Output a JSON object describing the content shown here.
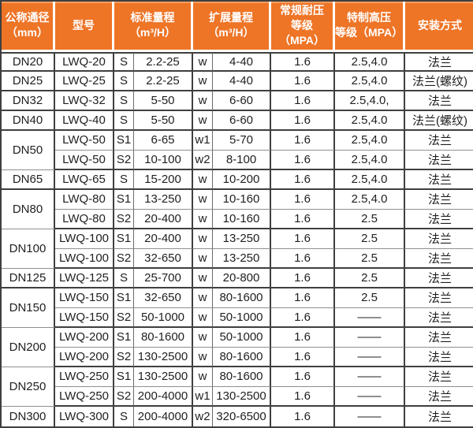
{
  "colors": {
    "header_bg": "#ee7426",
    "header_text": "#ffffff",
    "grid_dark": "#3f3f3f",
    "grid_light": "#8f8f8f",
    "body_text": "#1f1f1f",
    "header_separator": "#ffffff"
  },
  "table": {
    "columns": {
      "dn": "公称通径\n（mm）",
      "model": "型号",
      "std": "标准量程\n（m³/H）",
      "ext": "扩展量程\n（m³/H）",
      "p1": "常规耐压\n等级（MPA）",
      "p2": "特制高压\n等级（MPA）",
      "mount": "安装方式"
    },
    "rows": [
      {
        "dn": "DN20",
        "dn_span": 1,
        "model": "LWQ-20",
        "s": "S",
        "std": "2.2-25",
        "w": "w",
        "ext": "4-40",
        "p1": "1.6",
        "p2": "2.5,4.0",
        "mount": "法兰"
      },
      {
        "dn": "DN25",
        "dn_span": 1,
        "model": "LWQ-25",
        "s": "S",
        "std": "2.2-25",
        "w": "w",
        "ext": "4-40",
        "p1": "1.6",
        "p2": "2.5,4.0",
        "mount": "法兰(螺纹)"
      },
      {
        "dn": "DN32",
        "dn_span": 1,
        "model": "LWQ-32",
        "s": "S",
        "std": "5-50",
        "w": "w",
        "ext": "6-60",
        "p1": "1.6",
        "p2": "2.5,4.0,",
        "mount": "法兰"
      },
      {
        "dn": "DN40",
        "dn_span": 1,
        "model": "LWQ-40",
        "s": "S",
        "std": "5-50",
        "w": "w",
        "ext": "6-60",
        "p1": "1.6",
        "p2": "2.5,4.0",
        "mount": "法兰(螺纹)"
      },
      {
        "dn": "DN50",
        "dn_span": 2,
        "model": "LWQ-50",
        "s": "S1",
        "std": "6-65",
        "w": "w1",
        "ext": "5-70",
        "p1": "1.6",
        "p2": "2.5,4.0",
        "mount": "法兰"
      },
      {
        "model": "LWQ-50",
        "s": "S2",
        "std": "10-100",
        "w": "w2",
        "ext": "8-100",
        "p1": "1.6",
        "p2": "2.5,4.0",
        "mount": "法兰"
      },
      {
        "dn": "DN65",
        "dn_span": 1,
        "model": "LWQ-65",
        "s": "S",
        "std": "15-200",
        "w": "w",
        "ext": "10-200",
        "p1": "1.6",
        "p2": "2.5,4.0",
        "mount": "法兰"
      },
      {
        "dn": "DN80",
        "dn_span": 2,
        "model": "LWQ-80",
        "s": "S1",
        "std": "13-250",
        "w": "w",
        "ext": "10-160",
        "p1": "1.6",
        "p2": "2.5,4.0",
        "mount": "法兰"
      },
      {
        "model": "LWQ-80",
        "s": "S2",
        "std": "20-400",
        "w": "w",
        "ext": "10-160",
        "p1": "1.6",
        "p2": "2.5",
        "mount": "法兰"
      },
      {
        "dn": "DN100",
        "dn_span": 2,
        "model": "LWQ-100",
        "s": "S1",
        "std": "20-400",
        "w": "w",
        "ext": "13-250",
        "p1": "1.6",
        "p2": "2.5",
        "mount": "法兰"
      },
      {
        "model": "LWQ-100",
        "s": "S2",
        "std": "32-650",
        "w": "w",
        "ext": "13-250",
        "p1": "1.6",
        "p2": "2.5",
        "mount": "法兰"
      },
      {
        "dn": "DN125",
        "dn_span": 1,
        "model": "LWQ-125",
        "s": "S",
        "std": "25-700",
        "w": "w",
        "ext": "20-800",
        "p1": "1.6",
        "p2": "2.5",
        "mount": "法兰"
      },
      {
        "dn": "DN150",
        "dn_span": 2,
        "model": "LWQ-150",
        "s": "S1",
        "std": "32-650",
        "w": "w",
        "ext": "80-1600",
        "p1": "1.6",
        "p2": "2.5",
        "mount": "法兰"
      },
      {
        "model": "LWQ-150",
        "s": "S2",
        "std": "50-1000",
        "w": "w",
        "ext": "50-1000",
        "p1": "1.6",
        "p2": "——",
        "mount": "法兰"
      },
      {
        "dn": "DN200",
        "dn_span": 2,
        "model": "LWQ-200",
        "s": "S1",
        "std": "80-1600",
        "w": "w",
        "ext": "50-1000",
        "p1": "1.6",
        "p2": "——",
        "mount": "法兰"
      },
      {
        "model": "LWQ-200",
        "s": "S2",
        "std": "130-2500",
        "w": "w",
        "ext": "80-1600",
        "p1": "1.6",
        "p2": "——",
        "mount": "法兰"
      },
      {
        "dn": "DN250",
        "dn_span": 2,
        "model": "LWQ-250",
        "s": "S1",
        "std": "130-2500",
        "w": "w",
        "ext": "80-1600",
        "p1": "1.6",
        "p2": "——",
        "mount": "法兰"
      },
      {
        "model": "LWQ-250",
        "s": "S2",
        "std": "200-4000",
        "w": "w1",
        "ext": "130-2500",
        "p1": "1.6",
        "p2": "——",
        "mount": "法兰"
      },
      {
        "dn": "DN300",
        "dn_span": 1,
        "model": "LWQ-300",
        "s": "S",
        "std": "200-4000",
        "w": "w2",
        "ext": "320-6500",
        "p1": "1.6",
        "p2": "——",
        "mount": "法兰"
      }
    ]
  }
}
